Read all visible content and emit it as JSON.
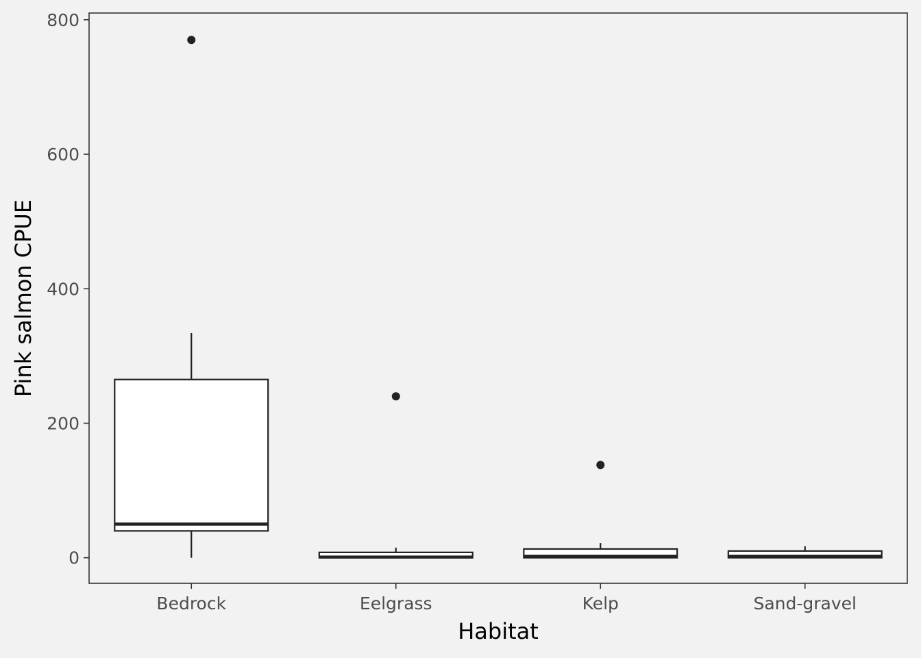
{
  "chart_data": {
    "type": "boxplot",
    "title": "",
    "xlabel": "Habitat",
    "ylabel": "Pink salmon CPUE",
    "ylim": [
      -38,
      810
    ],
    "yticks": [
      0,
      200,
      400,
      600,
      800
    ],
    "grid": false,
    "categories": [
      "Bedrock",
      "Eelgrass",
      "Kelp",
      "Sand-gravel"
    ],
    "boxes": [
      {
        "category": "Bedrock",
        "whisker_low": 0,
        "q1": 40,
        "median": 50,
        "q3": 265,
        "whisker_high": 334,
        "outliers": [
          770
        ]
      },
      {
        "category": "Eelgrass",
        "whisker_low": 0,
        "q1": 0,
        "median": 1,
        "q3": 8,
        "whisker_high": 15,
        "outliers": [
          240
        ]
      },
      {
        "category": "Kelp",
        "whisker_low": 0,
        "q1": 0,
        "median": 2,
        "q3": 13,
        "whisker_high": 22,
        "outliers": [
          138
        ]
      },
      {
        "category": "Sand-gravel",
        "whisker_low": 0,
        "q1": 0,
        "median": 2,
        "q3": 10,
        "whisker_high": 17,
        "outliers": []
      }
    ],
    "colors": {
      "background": "#f2f2f2",
      "box_fill": "#ffffff",
      "line": "#222222",
      "tick_text": "#4d4d4d",
      "title_text": "#000000"
    }
  }
}
